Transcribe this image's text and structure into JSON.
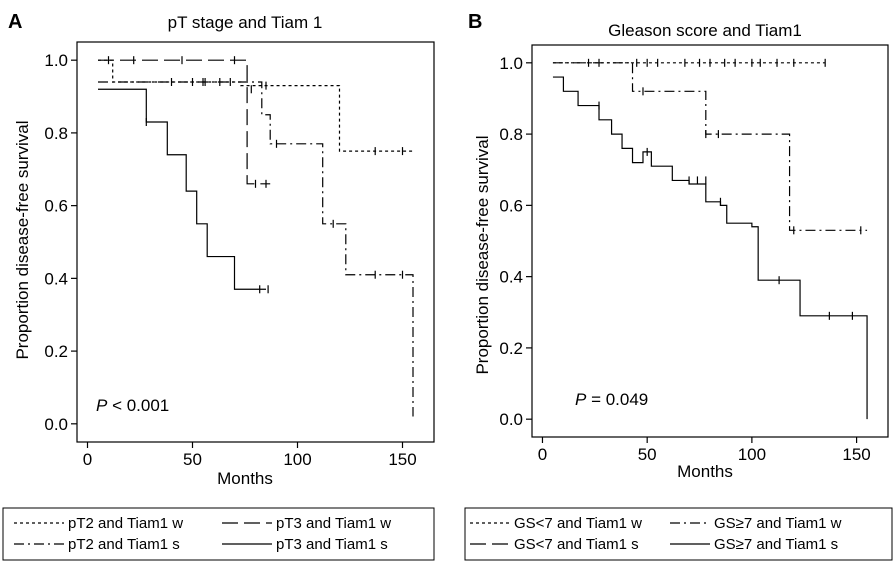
{
  "chart_data": [
    {
      "type": "line",
      "panel_letter": "A",
      "title": "pT stage and Tiam 1",
      "xlabel": "Months",
      "ylabel": "Proportion disease-free survival",
      "xlim": [
        -5,
        165
      ],
      "ylim": [
        -0.05,
        1.05
      ],
      "x_ticks": [
        0,
        50,
        100,
        150
      ],
      "y_ticks": [
        0.0,
        0.2,
        0.4,
        0.6,
        0.8,
        1.0
      ],
      "x_tick_labels": [
        "0",
        "50",
        "100",
        "150"
      ],
      "y_tick_labels": [
        "0.0",
        "0.2",
        "0.4",
        "0.6",
        "0.8",
        "1.0"
      ],
      "grid": false,
      "legend_position": "below",
      "legend_columns": 2,
      "annotation": {
        "italic": "P",
        "rest": " < 0.001"
      },
      "series": [
        {
          "name": "pT2 and Tiam1 w",
          "dash": "3,3",
          "x": [
            5,
            12,
            73,
            120,
            155
          ],
          "y": [
            1.0,
            0.94,
            0.93,
            0.75,
            0.75
          ],
          "censor_x": [
            10,
            50,
            55,
            63,
            68,
            85,
            137,
            150
          ],
          "censor_y": [
            1.0,
            0.94,
            0.94,
            0.94,
            0.94,
            0.93,
            0.75,
            0.75
          ]
        },
        {
          "name": "pT3 and Tiam1 w",
          "dash": "16,6",
          "x": [
            5,
            72,
            76,
            87
          ],
          "y": [
            1.0,
            1.0,
            0.66,
            0.66
          ],
          "censor_x": [
            22,
            45,
            70,
            80,
            85
          ],
          "censor_y": [
            1.0,
            1.0,
            1.0,
            0.66,
            0.66
          ]
        },
        {
          "name": "pT2 and Tiam1 s",
          "dash": "10,4,2,4",
          "x": [
            5,
            78,
            83,
            87,
            100,
            112,
            123,
            153,
            155
          ],
          "y": [
            0.94,
            0.94,
            0.85,
            0.77,
            0.77,
            0.55,
            0.41,
            0.41,
            0.02
          ],
          "censor_x": [
            40,
            56,
            78,
            90,
            117,
            137,
            150
          ],
          "censor_y": [
            0.94,
            0.94,
            0.92,
            0.77,
            0.55,
            0.41,
            0.41
          ]
        },
        {
          "name": "pT3 and Tiam1 s",
          "dash": "",
          "x": [
            5,
            17,
            28,
            38,
            47,
            52,
            57,
            70,
            85
          ],
          "y": [
            0.92,
            0.92,
            0.83,
            0.74,
            0.64,
            0.55,
            0.46,
            0.37,
            0.37
          ],
          "censor_x": [
            28,
            82,
            86
          ],
          "censor_y": [
            0.83,
            0.37,
            0.37
          ]
        }
      ]
    },
    {
      "type": "line",
      "panel_letter": "B",
      "title": "Gleason score and Tiam1",
      "xlabel": "Months",
      "ylabel": "Proportion disease-free survival",
      "xlim": [
        -5,
        165
      ],
      "ylim": [
        -0.05,
        1.05
      ],
      "x_ticks": [
        0,
        50,
        100,
        150
      ],
      "y_ticks": [
        0.0,
        0.2,
        0.4,
        0.6,
        0.8,
        1.0
      ],
      "x_tick_labels": [
        "0",
        "50",
        "100",
        "150"
      ],
      "y_tick_labels": [
        "0.0",
        "0.2",
        "0.4",
        "0.6",
        "0.8",
        "1.0"
      ],
      "grid": false,
      "legend_position": "below",
      "legend_columns": 2,
      "annotation": {
        "italic": "P",
        "rest": " = 0.049"
      },
      "series": [
        {
          "name": "GS<7 and Tiam1 w",
          "dash": "3,3",
          "x": [
            5,
            135
          ],
          "y": [
            1.0,
            1.0
          ],
          "censor_x": [
            22,
            27,
            45,
            50,
            55,
            68,
            75,
            80,
            87,
            92,
            100,
            104,
            112,
            120,
            135
          ],
          "censor_y": [
            1.0,
            1.0,
            1.0,
            1.0,
            1.0,
            1.0,
            1.0,
            1.0,
            1.0,
            1.0,
            1.0,
            1.0,
            1.0,
            1.0,
            1.0
          ]
        },
        {
          "name": "GS≥7 and Tiam1 w",
          "dash": "10,4,2,4",
          "x": [
            5,
            43,
            73,
            78,
            118,
            155
          ],
          "y": [
            1.0,
            0.92,
            0.92,
            0.8,
            0.53,
            0.53
          ],
          "censor_x": [
            48,
            78,
            84,
            120,
            152
          ],
          "censor_y": [
            0.92,
            0.8,
            0.8,
            0.53,
            0.53
          ]
        },
        {
          "name": "GS<7 and Tiam1 s",
          "dash": "16,6",
          "x": [],
          "y": [],
          "censor_x": [],
          "censor_y": []
        },
        {
          "name": "GS≥7 and Tiam1 s",
          "dash": "",
          "x": [
            5,
            10,
            17,
            27,
            33,
            38,
            43,
            48,
            52,
            62,
            70,
            78,
            85,
            88,
            100,
            103,
            123,
            153,
            155
          ],
          "y": [
            0.96,
            0.92,
            0.88,
            0.84,
            0.8,
            0.76,
            0.72,
            0.75,
            0.71,
            0.67,
            0.66,
            0.61,
            0.6,
            0.55,
            0.54,
            0.39,
            0.29,
            0.29,
            0.0
          ],
          "censor_x": [
            27,
            50,
            70,
            74,
            78,
            85,
            113,
            137,
            148
          ],
          "censor_y": [
            0.88,
            0.75,
            0.67,
            0.67,
            0.67,
            0.61,
            0.39,
            0.29,
            0.29
          ]
        }
      ]
    }
  ]
}
